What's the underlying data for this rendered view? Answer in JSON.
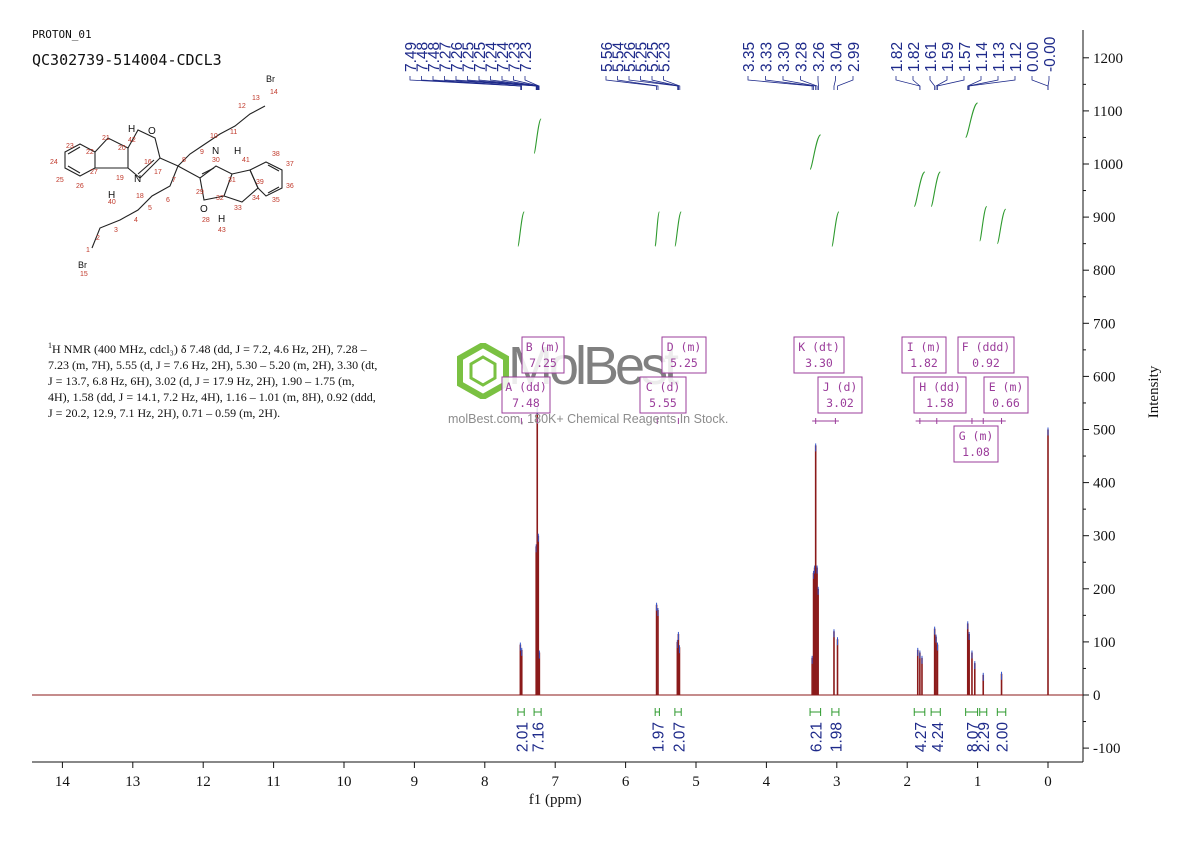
{
  "header": {
    "experiment": "PROTON_01",
    "sample": "QC302739-514004-CDCL3"
  },
  "nmr_description": {
    "prefix_sup": "1",
    "text": "H NMR (400 MHz, cdcl₃) δ 7.48 (dd, J = 7.2, 4.6 Hz, 2H), 7.28 – 7.23 (m, 7H), 5.55 (d, J = 7.6 Hz, 2H), 5.30 – 5.20 (m, 2H), 3.30 (dt, J = 13.7, 6.8 Hz, 6H), 3.02 (d, J = 17.9 Hz, 2H), 1.90 – 1.75 (m, 4H), 1.58 (dd, J = 14.1, 7.2 Hz, 4H), 1.16 – 1.01 (m, 8H), 0.92 (ddd, J = 20.2, 12.9, 7.1 Hz, 2H), 0.71 – 0.59 (m, 2H)."
  },
  "watermark": {
    "logo_text": "MolBest",
    "tagline": "molBest.com, 180K+ Chemical Reagents In Stock."
  },
  "structure": {
    "atom_labels": [
      "Br",
      "14",
      "13",
      "12",
      "11",
      "10",
      "9",
      "8",
      "7",
      "O",
      "16",
      "17",
      "N",
      "18",
      "19",
      "20",
      "21",
      "22",
      "23",
      "24",
      "25",
      "26",
      "27",
      "40",
      "42",
      "H",
      "H",
      "6",
      "5",
      "4",
      "3",
      "2",
      "1",
      "Br",
      "15",
      "29",
      "30",
      "N",
      "31",
      "41",
      "H",
      "39",
      "38",
      "37",
      "36",
      "35",
      "34",
      "33",
      "32",
      "O",
      "28",
      "H",
      "43"
    ]
  },
  "chart_data": {
    "type": "line",
    "title": "",
    "xlabel": "f1 (ppm)",
    "ylabel": "Intensity",
    "xlim": [
      14.5,
      -0.5
    ],
    "ylim": [
      -120,
      1250
    ],
    "x_ticks": [
      14,
      13,
      12,
      11,
      10,
      9,
      8,
      7,
      6,
      5,
      4,
      3,
      2,
      1,
      0
    ],
    "y_ticks": [
      -100,
      0,
      100,
      200,
      300,
      400,
      500,
      600,
      700,
      800,
      900,
      1000,
      1100,
      1200
    ],
    "x_reversed": true,
    "spectrum_color": "#8b1a1a",
    "integral_color": "#2e9a2e",
    "label_color": "#9b3d9b",
    "peak_label_color": "#1e2a8a",
    "peaks": [
      {
        "ppm": 7.495,
        "height": 95
      },
      {
        "ppm": 7.475,
        "height": 85
      },
      {
        "ppm": 7.27,
        "height": 280
      },
      {
        "ppm": 7.255,
        "height": 540
      },
      {
        "ppm": 7.24,
        "height": 300
      },
      {
        "ppm": 7.225,
        "height": 80
      },
      {
        "ppm": 5.56,
        "height": 170
      },
      {
        "ppm": 5.54,
        "height": 160
      },
      {
        "ppm": 5.265,
        "height": 100
      },
      {
        "ppm": 5.25,
        "height": 115
      },
      {
        "ppm": 5.235,
        "height": 90
      },
      {
        "ppm": 3.35,
        "height": 70
      },
      {
        "ppm": 3.33,
        "height": 230
      },
      {
        "ppm": 3.315,
        "height": 240
      },
      {
        "ppm": 3.3,
        "height": 470
      },
      {
        "ppm": 3.28,
        "height": 240
      },
      {
        "ppm": 3.265,
        "height": 200
      },
      {
        "ppm": 3.04,
        "height": 120
      },
      {
        "ppm": 2.99,
        "height": 105
      },
      {
        "ppm": 1.85,
        "height": 85
      },
      {
        "ppm": 1.82,
        "height": 80
      },
      {
        "ppm": 1.79,
        "height": 70
      },
      {
        "ppm": 1.61,
        "height": 125
      },
      {
        "ppm": 1.59,
        "height": 110
      },
      {
        "ppm": 1.57,
        "height": 95
      },
      {
        "ppm": 1.14,
        "height": 135
      },
      {
        "ppm": 1.12,
        "height": 115
      },
      {
        "ppm": 1.08,
        "height": 80
      },
      {
        "ppm": 1.04,
        "height": 60
      },
      {
        "ppm": 0.92,
        "height": 38
      },
      {
        "ppm": 0.66,
        "height": 40
      },
      {
        "ppm": 0.0,
        "height": 500
      }
    ],
    "peak_labels_left": [
      "7.49",
      "7.48",
      "7.48",
      "7.27",
      "7.26",
      "7.25",
      "7.25",
      "7.24",
      "7.24",
      "7.23",
      "7.23"
    ],
    "peak_labels_mid": [
      "5.56",
      "5.54",
      "5.26",
      "5.25",
      "5.25",
      "5.23"
    ],
    "peak_labels_right1": [
      "3.35",
      "3.33",
      "3.30",
      "3.28",
      "3.26",
      "3.04",
      "2.99"
    ],
    "peak_labels_right2": [
      "1.82",
      "1.82",
      "1.61",
      "1.59",
      "1.57",
      "1.14",
      "1.13",
      "1.12",
      "0.00",
      "-0.00"
    ],
    "integrals": [
      {
        "ppm": 7.48,
        "value": "2.01",
        "x_from": 7.53,
        "x_to": 7.44,
        "top": 910
      },
      {
        "ppm": 7.25,
        "value": "7.16",
        "x_from": 7.3,
        "x_to": 7.2,
        "top": 1085
      },
      {
        "ppm": 5.55,
        "value": "1.97",
        "x_from": 5.58,
        "x_to": 5.52,
        "top": 910
      },
      {
        "ppm": 5.25,
        "value": "2.07",
        "x_from": 5.3,
        "x_to": 5.21,
        "top": 910
      },
      {
        "ppm": 3.3,
        "value": "6.21",
        "x_from": 3.38,
        "x_to": 3.23,
        "top": 1055
      },
      {
        "ppm": 3.02,
        "value": "1.98",
        "x_from": 3.07,
        "x_to": 2.97,
        "top": 910
      },
      {
        "ppm": 1.82,
        "value": "4.27",
        "x_from": 1.9,
        "x_to": 1.75,
        "top": 985
      },
      {
        "ppm": 1.58,
        "value": "4.24",
        "x_from": 1.66,
        "x_to": 1.53,
        "top": 985
      },
      {
        "ppm": 1.08,
        "value": "8.07",
        "x_from": 1.17,
        "x_to": 1.0,
        "top": 1115
      },
      {
        "ppm": 0.92,
        "value": "2.29",
        "x_from": 0.97,
        "x_to": 0.87,
        "top": 920
      },
      {
        "ppm": 0.66,
        "value": "2.00",
        "x_from": 0.72,
        "x_to": 0.6,
        "top": 915
      }
    ],
    "multiplet_labels": [
      {
        "letter": "B (m)",
        "value": "7.25"
      },
      {
        "letter": "A (dd)",
        "value": "7.48"
      },
      {
        "letter": "D (m)",
        "value": "5.25"
      },
      {
        "letter": "C (d)",
        "value": "5.55"
      },
      {
        "letter": "K (dt)",
        "value": "3.30"
      },
      {
        "letter": "J (d)",
        "value": "3.02"
      },
      {
        "letter": "I (m)",
        "value": "1.82"
      },
      {
        "letter": "H (dd)",
        "value": "1.58"
      },
      {
        "letter": "F (ddd)",
        "value": "0.92"
      },
      {
        "letter": "E (m)",
        "value": "0.66"
      },
      {
        "letter": "G (m)",
        "value": "1.08"
      }
    ]
  }
}
